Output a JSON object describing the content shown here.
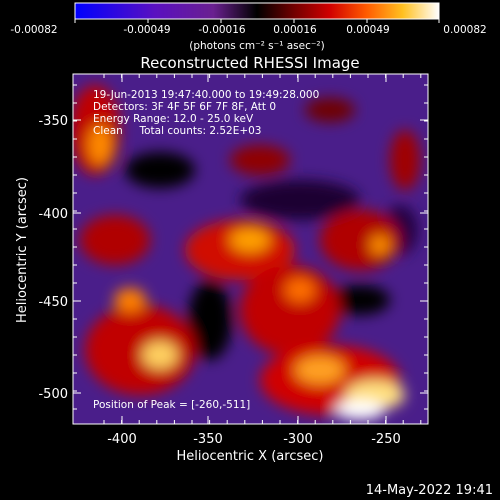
{
  "colorbar": {
    "tick_labels": [
      "-0.00082",
      "-0.00049",
      "-0.00016",
      "0.00016",
      "0.00049",
      "0.00082"
    ],
    "units_label": "(photons cm⁻² s⁻¹ asec⁻²)",
    "colors": [
      "#0000ff",
      "#4000c8",
      "#6a1ea0",
      "#000000",
      "#6a0000",
      "#c80000",
      "#ff5000",
      "#ffb000",
      "#ffff80",
      "#ffffff"
    ]
  },
  "plot": {
    "title": "Reconstructed RHESSI Image",
    "xlabel": "Heliocentric X (arcsec)",
    "ylabel": "Heliocentric Y (arcsec)",
    "x_ticks": [
      "-400",
      "-350",
      "-300",
      "-250"
    ],
    "y_ticks": [
      "-350",
      "-400",
      "-450",
      "-500"
    ],
    "xlim": [
      -423,
      -232
    ],
    "ylim": [
      -524,
      -327
    ]
  },
  "annotations": {
    "time_range": "19-Jun-2013 19:47:40.000 to 19:49:28.000",
    "detectors": "Detectors: 3F 4F 5F 6F 7F 8F, Att 0",
    "energy": "Energy Range: 12.0 - 25.0 keV",
    "method": "Clean     Total counts: 2.52E+03",
    "peak": "Position of Peak = [-260,-511]"
  },
  "footer": {
    "timestamp": "14-May-2022 19:41"
  }
}
